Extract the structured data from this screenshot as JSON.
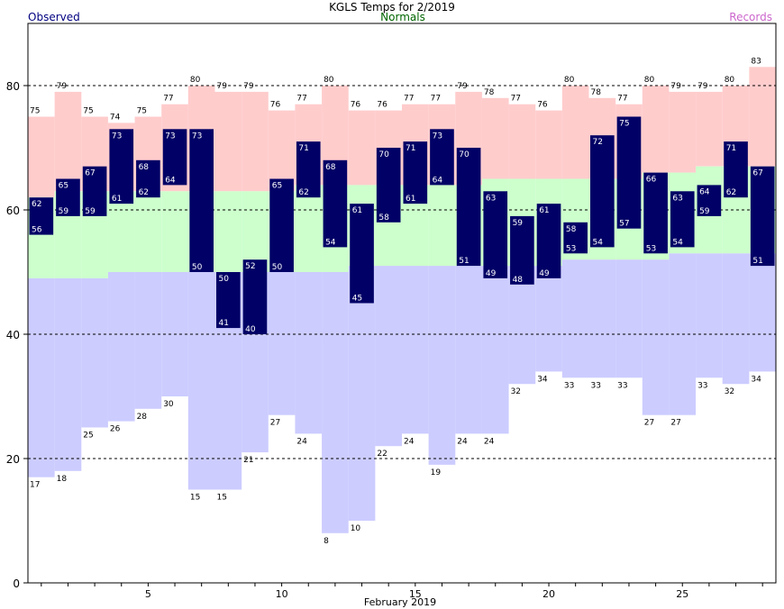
{
  "chart_data": {
    "type": "bar",
    "title": "KGLS Temps for 2/2019",
    "xlabel": "February 2019",
    "legend": {
      "observed": "Observed",
      "normals": "Normals",
      "records": "Records"
    },
    "colors": {
      "observed": "#000066",
      "observed_legend": "#000080",
      "normals_band": "#ccffcc",
      "normals_legend": "#006600",
      "record_high_band": "#ffcccc",
      "record_low_band": "#ccccff",
      "records_legend": "#cc66cc",
      "obs_label": "#ffffff"
    },
    "ylim": [
      0,
      90
    ],
    "yticks": [
      0,
      20,
      40,
      60,
      80
    ],
    "gridlines": [
      20,
      40,
      60,
      80
    ],
    "xticks": [
      5,
      10,
      15,
      20,
      25
    ],
    "days": [
      1,
      2,
      3,
      4,
      5,
      6,
      7,
      8,
      9,
      10,
      11,
      12,
      13,
      14,
      15,
      16,
      17,
      18,
      19,
      20,
      21,
      22,
      23,
      24,
      25,
      26,
      27,
      28
    ],
    "observed_high": [
      62,
      65,
      67,
      73,
      68,
      73,
      73,
      50,
      52,
      65,
      71,
      68,
      61,
      70,
      71,
      73,
      70,
      63,
      59,
      61,
      58,
      72,
      75,
      66,
      63,
      64,
      71,
      67
    ],
    "observed_low": [
      56,
      59,
      59,
      61,
      62,
      64,
      50,
      41,
      40,
      50,
      62,
      54,
      45,
      58,
      61,
      64,
      51,
      49,
      48,
      49,
      53,
      54,
      57,
      53,
      54,
      59,
      62,
      51
    ],
    "normal_high": [
      62,
      63,
      63,
      63,
      63,
      63,
      63,
      63,
      63,
      63,
      64,
      64,
      64,
      64,
      64,
      64,
      64,
      65,
      65,
      65,
      65,
      65,
      65,
      66,
      66,
      67,
      67,
      67
    ],
    "normal_low": [
      49,
      49,
      49,
      50,
      50,
      50,
      50,
      50,
      50,
      50,
      50,
      50,
      51,
      51,
      51,
      51,
      51,
      51,
      51,
      51,
      52,
      52,
      52,
      52,
      53,
      53,
      53,
      53
    ],
    "record_high": [
      75,
      79,
      75,
      74,
      75,
      77,
      80,
      79,
      79,
      76,
      77,
      80,
      76,
      76,
      77,
      77,
      79,
      78,
      77,
      76,
      80,
      78,
      77,
      80,
      79,
      79,
      80,
      83
    ],
    "record_low": [
      17,
      18,
      25,
      26,
      28,
      30,
      15,
      15,
      21,
      27,
      24,
      8,
      10,
      22,
      24,
      19,
      24,
      24,
      32,
      34,
      33,
      33,
      33,
      27,
      27,
      33,
      32,
      34
    ]
  }
}
